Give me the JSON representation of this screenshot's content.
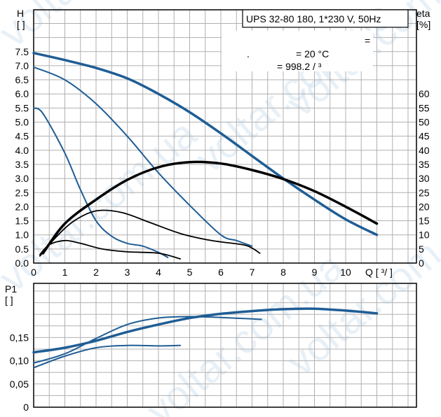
{
  "watermark": "voltar.com.ua",
  "title_box": "UPS 32-80 180, 1*230 V, 50Hz",
  "info": {
    "line1": "=",
    "line2_dot": ".",
    "line2": "= 20 °C",
    "line3": "= 998.2   /  ³"
  },
  "colors": {
    "head": "#1f5d95",
    "efficiency": "#000000",
    "power": "#1f5d95"
  },
  "chart_data": [
    {
      "type": "line",
      "panel": "head-efficiency",
      "ylabel_left": "H\n[  ]",
      "ylabel_right": "eta\n[%]",
      "xlabel": "Q [  ³/  ]",
      "xlim": [
        0,
        12
      ],
      "ylim_left": [
        0,
        8
      ],
      "ylim_right": [
        0,
        80
      ],
      "x_ticks": [
        "0",
        "1",
        "2",
        "3",
        "4",
        "5",
        "6",
        "7",
        "8",
        "9",
        "10"
      ],
      "y_left_ticks": [
        "0.0",
        "0.5",
        "1.0",
        "1.5",
        "2.0",
        "2.5",
        "3.0",
        "3.5",
        "4.0",
        "4.5",
        "5.0",
        "5.5",
        "6.0",
        "6.5",
        "7.0",
        "7.5"
      ],
      "y_right_ticks": [
        "0",
        "5",
        "10",
        "15",
        "20",
        "25",
        "30",
        "35",
        "40",
        "45",
        "50",
        "55",
        "60"
      ],
      "series": [
        {
          "kind": "head",
          "speed": "max",
          "axis": "left",
          "width": 3.5,
          "points": [
            [
              0,
              7.45
            ],
            [
              1,
              7.2
            ],
            [
              2,
              6.92
            ],
            [
              3,
              6.55
            ],
            [
              4,
              6.0
            ],
            [
              5,
              5.35
            ],
            [
              6,
              4.6
            ],
            [
              7,
              3.8
            ],
            [
              8,
              3.0
            ],
            [
              9,
              2.25
            ],
            [
              10,
              1.55
            ],
            [
              11,
              1.0
            ]
          ]
        },
        {
          "kind": "head",
          "speed": "mid",
          "axis": "left",
          "width": 2,
          "points": [
            [
              0,
              6.95
            ],
            [
              1,
              6.5
            ],
            [
              2,
              5.65
            ],
            [
              3,
              4.5
            ],
            [
              4,
              3.2
            ],
            [
              5,
              2.05
            ],
            [
              6,
              1.0
            ],
            [
              6.5,
              0.8
            ],
            [
              7,
              0.6
            ]
          ]
        },
        {
          "kind": "head",
          "speed": "min",
          "axis": "left",
          "width": 2,
          "points": [
            [
              0,
              5.5
            ],
            [
              0.3,
              5.3
            ],
            [
              1,
              3.9
            ],
            [
              1.5,
              2.6
            ],
            [
              2,
              1.5
            ],
            [
              2.5,
              0.95
            ],
            [
              3,
              0.7
            ],
            [
              3.5,
              0.6
            ],
            [
              4,
              0.38
            ],
            [
              4.3,
              0.2
            ]
          ]
        },
        {
          "kind": "efficiency",
          "speed": "max",
          "axis": "right",
          "width": 3.5,
          "points": [
            [
              0.3,
              3.5
            ],
            [
              1,
              14
            ],
            [
              2,
              22.5
            ],
            [
              3,
              29.5
            ],
            [
              4,
              34
            ],
            [
              5,
              35.8
            ],
            [
              6,
              35.3
            ],
            [
              7,
              33
            ],
            [
              8,
              29.8
            ],
            [
              9,
              25.5
            ],
            [
              10,
              20
            ],
            [
              11,
              14
            ]
          ]
        },
        {
          "kind": "efficiency",
          "speed": "mid",
          "axis": "right",
          "width": 1.8,
          "points": [
            [
              0.2,
              2.5
            ],
            [
              0.7,
              9
            ],
            [
              1.3,
              15
            ],
            [
              2,
              18.5
            ],
            [
              2.8,
              18
            ],
            [
              3.7,
              14.5
            ],
            [
              4.7,
              10.5
            ],
            [
              5.7,
              8
            ],
            [
              6.7,
              6.5
            ],
            [
              7,
              5.3
            ],
            [
              7.25,
              3.5
            ]
          ]
        },
        {
          "kind": "efficiency",
          "speed": "min",
          "axis": "right",
          "width": 1.8,
          "points": [
            [
              0.2,
              3
            ],
            [
              0.5,
              6.5
            ],
            [
              1,
              8
            ],
            [
              1.5,
              7
            ],
            [
              2.2,
              5
            ],
            [
              3,
              4
            ],
            [
              4,
              3.5
            ],
            [
              4.7,
              1.5
            ]
          ]
        }
      ]
    },
    {
      "type": "line",
      "panel": "power",
      "ylabel_left": "P1\n[    ]",
      "xlim": [
        0,
        12
      ],
      "ylim": [
        0,
        0.28
      ],
      "y_ticks": [
        "0",
        "0,05",
        "0,10",
        "0,15"
      ],
      "series": [
        {
          "speed": "max",
          "width": 3.5,
          "points": [
            [
              0,
              0.118
            ],
            [
              1,
              0.128
            ],
            [
              2,
              0.143
            ],
            [
              3,
              0.162
            ],
            [
              4,
              0.178
            ],
            [
              5,
              0.192
            ],
            [
              6,
              0.201
            ],
            [
              7,
              0.207
            ],
            [
              8,
              0.211
            ],
            [
              9,
              0.212
            ],
            [
              10,
              0.208
            ],
            [
              11,
              0.202
            ]
          ]
        },
        {
          "speed": "mid",
          "width": 2,
          "points": [
            [
              0,
              0.095
            ],
            [
              1,
              0.115
            ],
            [
              2,
              0.148
            ],
            [
              3,
              0.178
            ],
            [
              4,
              0.192
            ],
            [
              5,
              0.195
            ],
            [
              6,
              0.193
            ],
            [
              7,
              0.19
            ],
            [
              7.3,
              0.189
            ]
          ]
        },
        {
          "speed": "min",
          "width": 2,
          "points": [
            [
              0,
              0.085
            ],
            [
              1,
              0.11
            ],
            [
              2,
              0.128
            ],
            [
              3,
              0.133
            ],
            [
              4,
              0.132
            ],
            [
              4.7,
              0.133
            ]
          ]
        }
      ]
    }
  ]
}
